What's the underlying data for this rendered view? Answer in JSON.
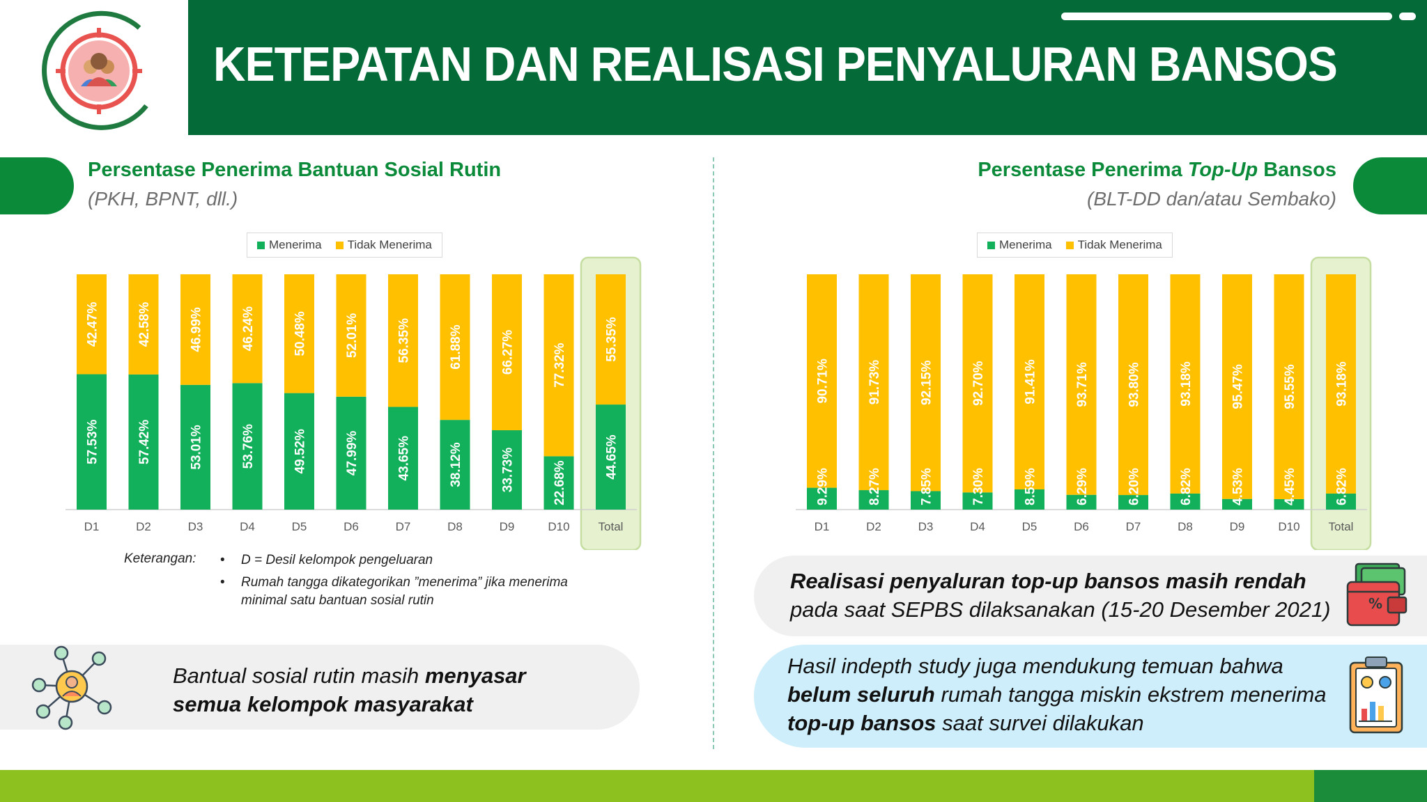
{
  "header": {
    "title": "KETEPATAN DAN REALISASI PENYALURAN BANSOS",
    "colors": {
      "title_bg": "#046a38",
      "accent": "#0b8a3a",
      "menerima": "#12b05a",
      "tidak_menerima": "#ffc000"
    }
  },
  "left_section": {
    "title": "Persentase Penerima Bantuan Sosial Rutin",
    "subtitle": "(PKH, BPNT, dll.)"
  },
  "right_section": {
    "title_pre": "Persentase Penerima ",
    "title_em": "Top-Up",
    "title_post": " Bansos",
    "subtitle": "(BLT-DD dan/atau Sembako)"
  },
  "legend": {
    "menerima": "Menerima",
    "tidak_menerima": "Tidak Menerima"
  },
  "chart_data": [
    {
      "type": "bar",
      "stacked": true,
      "percent_stacked": true,
      "categories": [
        "D1",
        "D2",
        "D3",
        "D4",
        "D5",
        "D6",
        "D7",
        "D8",
        "D9",
        "D10",
        "Total"
      ],
      "series": [
        {
          "name": "Menerima",
          "color": "#12b05a",
          "values": [
            57.53,
            57.42,
            53.01,
            53.76,
            49.52,
            47.99,
            43.65,
            38.12,
            33.73,
            22.68,
            44.65
          ]
        },
        {
          "name": "Tidak Menerima",
          "color": "#ffc000",
          "values": [
            42.47,
            42.58,
            46.99,
            46.24,
            50.48,
            52.01,
            56.35,
            61.88,
            66.27,
            77.32,
            55.35
          ]
        }
      ],
      "ylim": [
        0,
        100
      ],
      "highlight_category": "Total",
      "legend_position": "top-center",
      "grid": false
    },
    {
      "type": "bar",
      "stacked": true,
      "percent_stacked": true,
      "categories": [
        "D1",
        "D2",
        "D3",
        "D4",
        "D5",
        "D6",
        "D7",
        "D8",
        "D9",
        "D10",
        "Total"
      ],
      "series": [
        {
          "name": "Menerima",
          "color": "#12b05a",
          "values": [
            9.29,
            8.27,
            7.85,
            7.3,
            8.59,
            6.29,
            6.2,
            6.82,
            4.53,
            4.45,
            6.82
          ]
        },
        {
          "name": "Tidak Menerima",
          "color": "#ffc000",
          "values": [
            90.71,
            91.73,
            92.15,
            92.7,
            91.41,
            93.71,
            93.8,
            93.18,
            95.47,
            95.55,
            93.18
          ]
        }
      ],
      "ylim": [
        0,
        100
      ],
      "highlight_category": "Total",
      "legend_position": "top-center",
      "grid": false
    }
  ],
  "notes": {
    "label": "Keterangan:",
    "bullet": "•",
    "items": [
      "D =  Desil kelompok pengeluaran",
      "Rumah tangga dikategorikan ”menerima” jika menerima minimal satu bantuan sosial rutin"
    ]
  },
  "callout_left": {
    "line1_pre": "Bantual sosial rutin masih ",
    "line1_bold": "menyasar",
    "line2_bold": "semua kelompok masyarakat"
  },
  "callout_right_1": {
    "line1_bold": "Realisasi penyaluran top-up bansos masih rendah",
    "line2": "pada saat SEPBS dilaksanakan (15-20 Desember 2021)"
  },
  "callout_right_2": {
    "line1": "Hasil indepth study juga mendukung temuan bahwa",
    "line2_bold": "belum seluruh",
    "line2_post": " rumah tangga miskin ekstrem menerima",
    "line3_bold": "top-up bansos",
    "line3_post": " saat survei dilakukan"
  },
  "icons": {
    "logo": "target-people-icon",
    "network": "people-network-icon",
    "wallet": "wallet-percent-icon",
    "report": "clipboard-chart-icon"
  }
}
